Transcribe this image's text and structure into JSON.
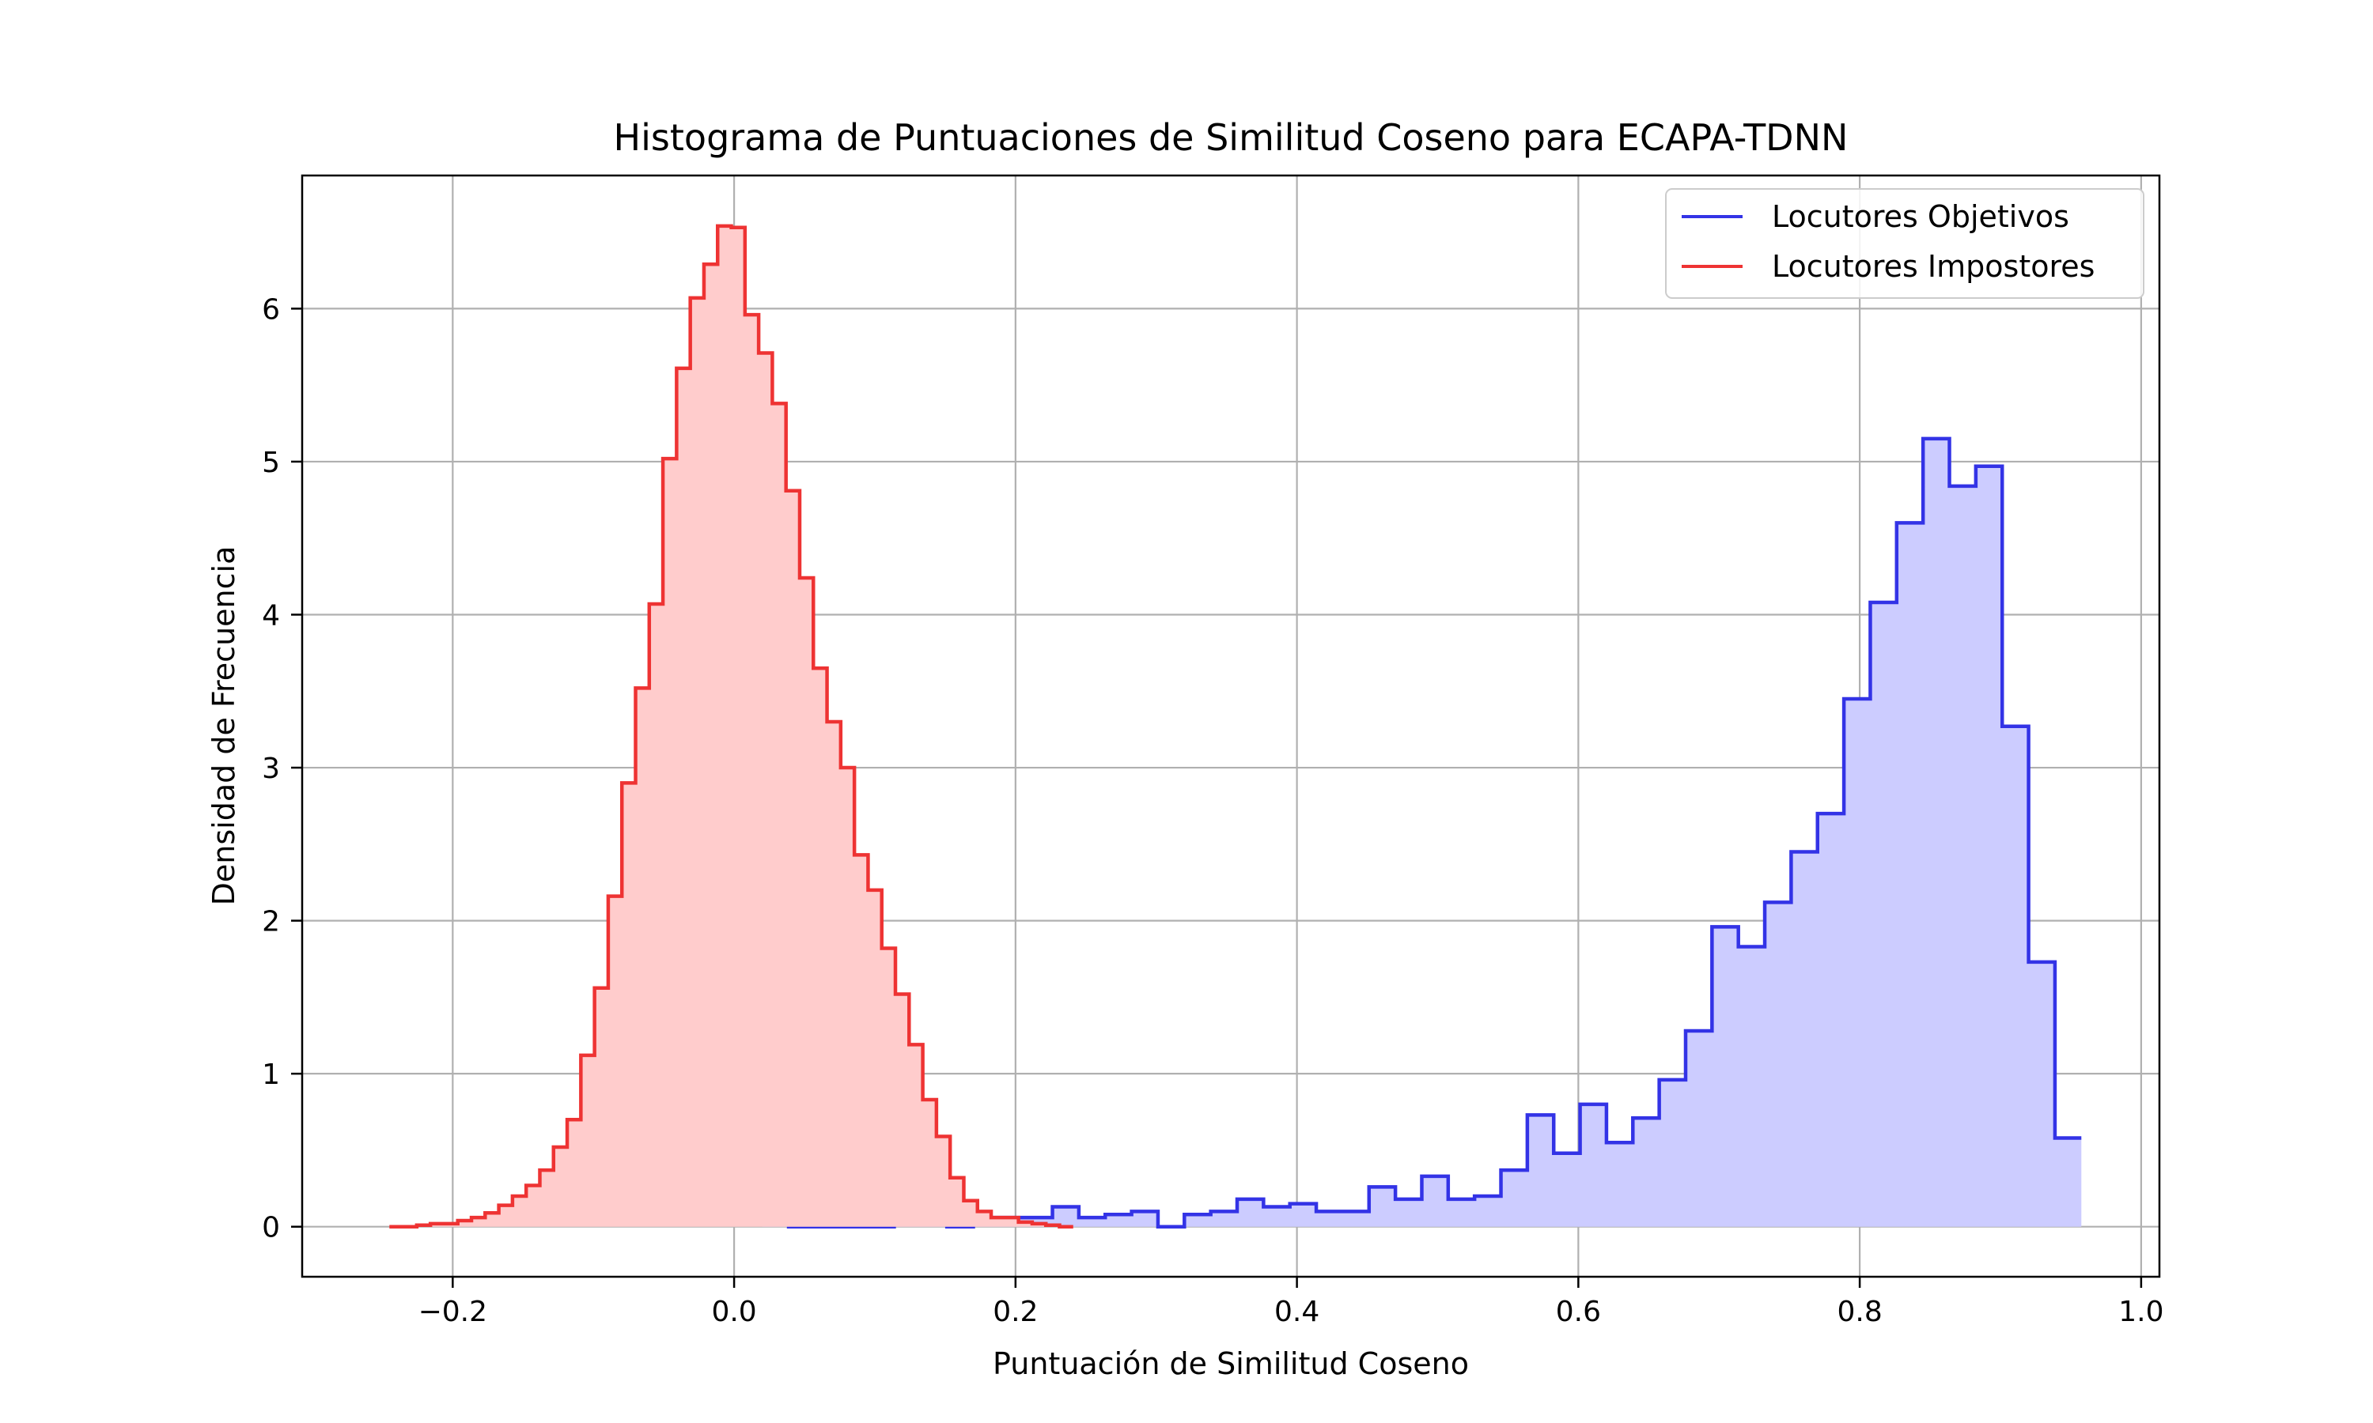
{
  "chart_data": {
    "type": "histogram",
    "title": "Histograma de Puntuaciones de Similitud Coseno para ECAPA-TDNN",
    "xlabel": "Puntuación de Similitud Coseno",
    "ylabel": "Densidad de Frecuencia",
    "xlim": [
      -0.307,
      1.013
    ],
    "ylim": [
      -0.327,
      6.87
    ],
    "xticks": [
      -0.2,
      0.0,
      0.2,
      0.4,
      0.6,
      0.8,
      1.0
    ],
    "xtick_labels": [
      "−0.2",
      "0.0",
      "0.2",
      "0.4",
      "0.6",
      "0.8",
      "1.0"
    ],
    "yticks": [
      0,
      1,
      2,
      3,
      4,
      5,
      6
    ],
    "ytick_labels": [
      "0",
      "1",
      "2",
      "3",
      "4",
      "5",
      "6"
    ],
    "grid": true,
    "legend": {
      "position": "top-right"
    },
    "series": [
      {
        "name": "Locutores Objetivos",
        "color": "#3333e6",
        "fill": "#ccccff",
        "bin_start": 0.02,
        "bin_width": 0.01875,
        "values": [
          0.06,
          0.0,
          0.0,
          0.0,
          0.0,
          0.06,
          0.03,
          0.0,
          0.06,
          0.06,
          0.06,
          0.13,
          0.06,
          0.08,
          0.1,
          0.0,
          0.08,
          0.1,
          0.18,
          0.13,
          0.15,
          0.1,
          0.1,
          0.26,
          0.18,
          0.33,
          0.18,
          0.2,
          0.37,
          0.73,
          0.48,
          0.8,
          0.55,
          0.71,
          0.96,
          1.28,
          1.96,
          1.83,
          2.12,
          2.45,
          2.7,
          3.45,
          4.08,
          4.6,
          5.15,
          4.84,
          4.97,
          3.27,
          1.73,
          0.58
        ]
      },
      {
        "name": "Locutores Impostores",
        "color": "#ee3333",
        "fill": "#ffcccc",
        "bin_start": -0.245,
        "bin_width": 0.00972,
        "values": [
          0.0,
          0.0,
          0.01,
          0.02,
          0.02,
          0.04,
          0.06,
          0.09,
          0.14,
          0.2,
          0.27,
          0.37,
          0.52,
          0.7,
          1.12,
          1.56,
          2.16,
          2.9,
          3.52,
          4.07,
          5.02,
          5.61,
          6.07,
          6.29,
          6.54,
          6.53,
          5.96,
          5.71,
          5.38,
          4.81,
          4.24,
          3.65,
          3.3,
          3.0,
          2.43,
          2.2,
          1.82,
          1.52,
          1.19,
          0.83,
          0.59,
          0.32,
          0.17,
          0.1,
          0.06,
          0.06,
          0.03,
          0.02,
          0.01,
          0.0
        ]
      }
    ]
  }
}
